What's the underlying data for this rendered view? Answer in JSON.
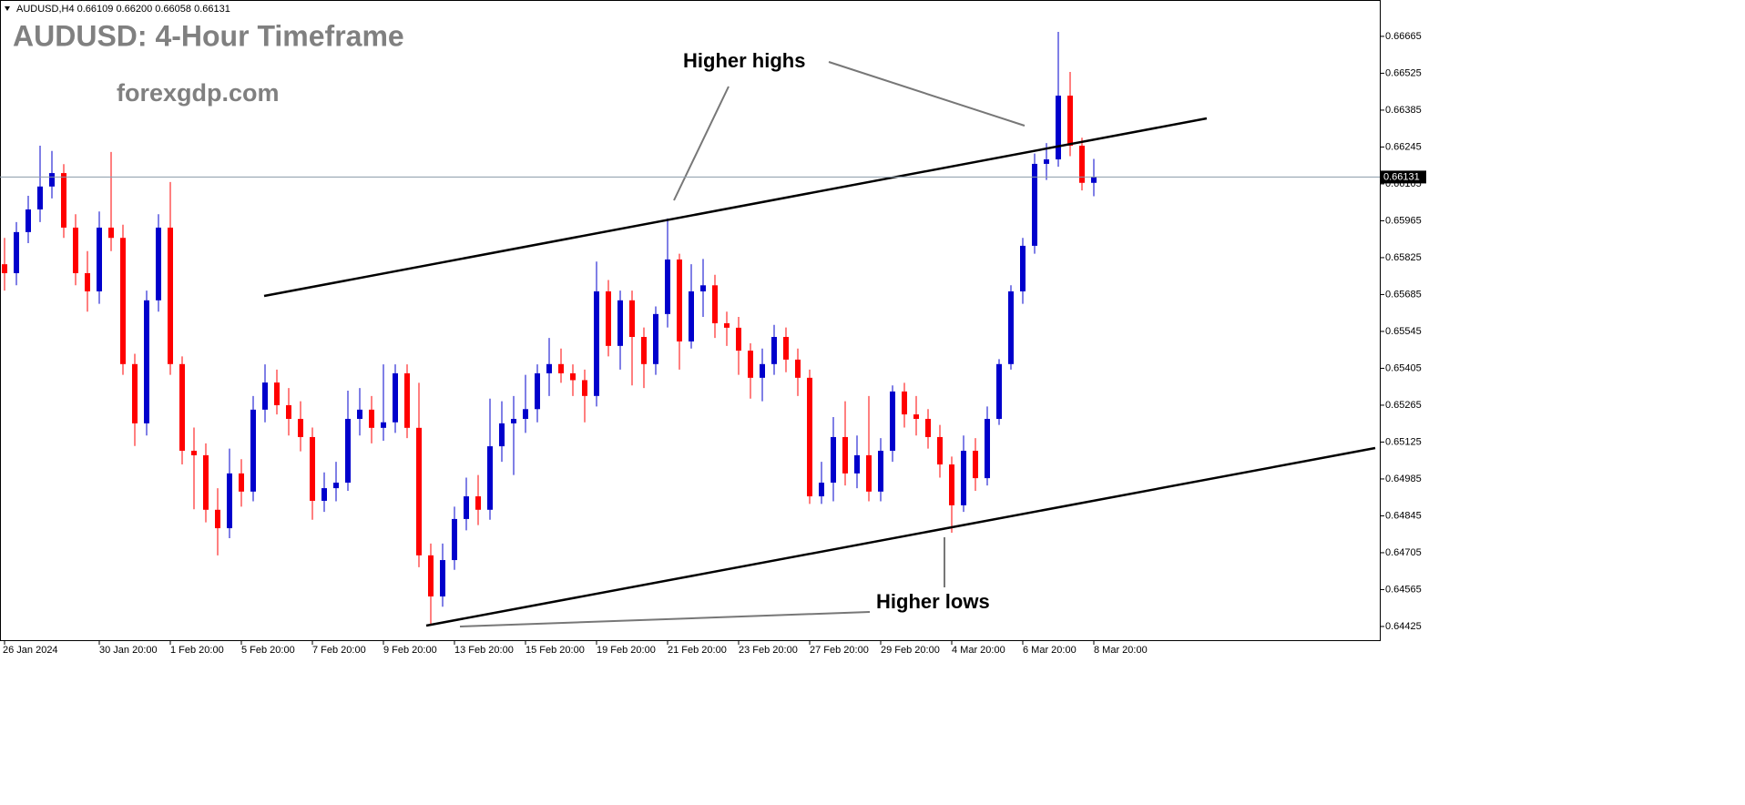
{
  "chart_data": {
    "type": "candlestick",
    "header": "AUDUSD,H4  0.66109 0.66200 0.66058 0.66131",
    "title": "AUDUSD: 4-Hour Timeframe",
    "subtitle": "forexgdp.com",
    "annotations": [
      "Higher highs",
      "Higher lows"
    ],
    "up_color": "#0000cc",
    "down_color": "#ff0000",
    "grid": false,
    "ylim": [
      0.64373,
      0.66803
    ],
    "yticks": [
      0.66665,
      0.66525,
      0.66385,
      0.66245,
      0.66105,
      0.65965,
      0.65825,
      0.65685,
      0.65545,
      0.65405,
      0.65265,
      0.65125,
      0.64985,
      0.64845,
      0.64705,
      0.64565,
      0.64425
    ],
    "categories": [
      "26 Jan 2024",
      null,
      null,
      null,
      null,
      null,
      null,
      null,
      "30 Jan 20:00",
      null,
      null,
      null,
      null,
      null,
      "1 Feb 20:00",
      null,
      null,
      null,
      null,
      null,
      "5 Feb 20:00",
      null,
      null,
      null,
      null,
      null,
      "7 Feb 20:00",
      null,
      null,
      null,
      null,
      null,
      "9 Feb 20:00",
      null,
      null,
      null,
      null,
      null,
      "13 Feb 20:00",
      null,
      null,
      null,
      null,
      null,
      "15 Feb 20:00",
      null,
      null,
      null,
      null,
      null,
      "19 Feb 20:00",
      null,
      null,
      null,
      null,
      null,
      "21 Feb 20:00",
      null,
      null,
      null,
      null,
      null,
      "23 Feb 20:00",
      null,
      null,
      null,
      null,
      null,
      "27 Feb 20:00",
      null,
      null,
      null,
      null,
      null,
      "29 Feb 20:00",
      null,
      null,
      null,
      null,
      null,
      "4 Mar 20:00",
      null,
      null,
      null,
      null,
      null,
      "6 Mar 20:00",
      null,
      null,
      null,
      null,
      null,
      "8 Mar 20:00"
    ],
    "open": [
      0.658,
      0.65766,
      0.65922,
      0.66008,
      0.66095,
      0.66146,
      0.65939,
      0.65766,
      0.65697,
      0.65939,
      0.659,
      0.65421,
      0.65196,
      0.65663,
      0.65939,
      0.65421,
      0.65092,
      0.65075,
      0.64868,
      0.64798,
      0.65006,
      0.64937,
      0.65248,
      0.65351,
      0.65265,
      0.65213,
      0.65144,
      0.64902,
      0.6495,
      0.64971,
      0.65213,
      0.65248,
      0.65179,
      0.652,
      0.65386,
      0.65179,
      0.64695,
      0.64539,
      0.64677,
      0.64833,
      0.64919,
      0.64868,
      0.65109,
      0.65196,
      0.65213,
      0.6525,
      0.65386,
      0.65421,
      0.65386,
      0.6536,
      0.653,
      0.65697,
      0.6549,
      0.65663,
      0.65524,
      0.65421,
      0.65611,
      0.65818,
      0.65507,
      0.65697,
      0.6572,
      0.65576,
      0.65559,
      0.65472,
      0.65369,
      0.65421,
      0.65524,
      0.65438,
      0.65369,
      0.64919,
      0.64971,
      0.65144,
      0.65006,
      0.65075,
      0.64937,
      0.65092,
      0.65317,
      0.6523,
      0.65213,
      0.65144,
      0.6504,
      0.64885,
      0.65092,
      0.64988,
      0.65213,
      0.65421,
      0.65697,
      0.6587,
      0.66181,
      0.66198,
      0.6644,
      0.6625,
      0.66109
    ],
    "high": [
      0.659,
      0.6596,
      0.6606,
      0.6625,
      0.6623,
      0.6618,
      0.6599,
      0.6585,
      0.66,
      0.66226,
      0.6595,
      0.6546,
      0.657,
      0.6599,
      0.66112,
      0.6545,
      0.6518,
      0.6512,
      0.6495,
      0.651,
      0.6506,
      0.653,
      0.6542,
      0.654,
      0.6533,
      0.6528,
      0.6518,
      0.6501,
      0.6505,
      0.6532,
      0.6533,
      0.653,
      0.6542,
      0.6542,
      0.6542,
      0.6535,
      0.6474,
      0.6474,
      0.6488,
      0.6499,
      0.65,
      0.6529,
      0.6528,
      0.653,
      0.6538,
      0.6542,
      0.6552,
      0.6548,
      0.6542,
      0.654,
      0.6581,
      0.6574,
      0.657,
      0.657,
      0.6556,
      0.6564,
      0.65974,
      0.6584,
      0.658,
      0.6582,
      0.6576,
      0.6562,
      0.656,
      0.655,
      0.6548,
      0.6557,
      0.6556,
      0.6548,
      0.654,
      0.6505,
      0.6522,
      0.6528,
      0.6515,
      0.653,
      0.6514,
      0.6534,
      0.6535,
      0.653,
      0.6525,
      0.6519,
      0.6507,
      0.6515,
      0.6514,
      0.6526,
      0.6544,
      0.6572,
      0.659,
      0.6622,
      0.6626,
      0.66682,
      0.6653,
      0.6628,
      0.662
    ],
    "low": [
      0.657,
      0.6572,
      0.6588,
      0.6596,
      0.6605,
      0.659,
      0.6572,
      0.6562,
      0.6565,
      0.6585,
      0.6538,
      0.6511,
      0.6515,
      0.6562,
      0.6538,
      0.6504,
      0.6487,
      0.6482,
      0.64695,
      0.6476,
      0.6488,
      0.649,
      0.652,
      0.6523,
      0.6515,
      0.6509,
      0.6483,
      0.6486,
      0.649,
      0.6494,
      0.6515,
      0.6512,
      0.6513,
      0.6516,
      0.6514,
      0.6465,
      0.64435,
      0.645,
      0.6464,
      0.6479,
      0.6481,
      0.6483,
      0.6505,
      0.65,
      0.6516,
      0.652,
      0.653,
      0.6535,
      0.653,
      0.652,
      0.6526,
      0.6545,
      0.654,
      0.6534,
      0.6533,
      0.6538,
      0.6556,
      0.654,
      0.6548,
      0.656,
      0.6552,
      0.6549,
      0.6538,
      0.6529,
      0.6528,
      0.6538,
      0.6539,
      0.653,
      0.6489,
      0.6489,
      0.649,
      0.6496,
      0.6495,
      0.649,
      0.649,
      0.6505,
      0.6518,
      0.6515,
      0.651,
      0.6499,
      0.64781,
      0.6486,
      0.6494,
      0.6496,
      0.6519,
      0.654,
      0.6565,
      0.6584,
      0.6612,
      0.6617,
      0.6621,
      0.6608,
      0.66058
    ],
    "close": [
      0.65766,
      0.65922,
      0.66008,
      0.66095,
      0.66146,
      0.65939,
      0.65766,
      0.65697,
      0.65939,
      0.659,
      0.65421,
      0.65196,
      0.65663,
      0.65939,
      0.65421,
      0.65092,
      0.65075,
      0.64868,
      0.64798,
      0.65006,
      0.64937,
      0.65248,
      0.65351,
      0.65265,
      0.65213,
      0.65144,
      0.64902,
      0.6495,
      0.64971,
      0.65213,
      0.65248,
      0.65179,
      0.652,
      0.65386,
      0.65179,
      0.64695,
      0.64539,
      0.64677,
      0.64833,
      0.64919,
      0.64868,
      0.65109,
      0.65196,
      0.65213,
      0.6525,
      0.65386,
      0.65421,
      0.65386,
      0.6536,
      0.653,
      0.65697,
      0.6549,
      0.65663,
      0.65524,
      0.65421,
      0.65611,
      0.65818,
      0.65507,
      0.65697,
      0.6572,
      0.65576,
      0.65559,
      0.65472,
      0.65369,
      0.65421,
      0.65524,
      0.65438,
      0.65369,
      0.64919,
      0.64971,
      0.65144,
      0.65006,
      0.65075,
      0.64937,
      0.65092,
      0.65317,
      0.6523,
      0.65213,
      0.65144,
      0.6504,
      0.64885,
      0.65092,
      0.64988,
      0.65213,
      0.65421,
      0.65697,
      0.6587,
      0.66181,
      0.66198,
      0.6644,
      0.6625,
      0.66109,
      0.66131
    ]
  }
}
